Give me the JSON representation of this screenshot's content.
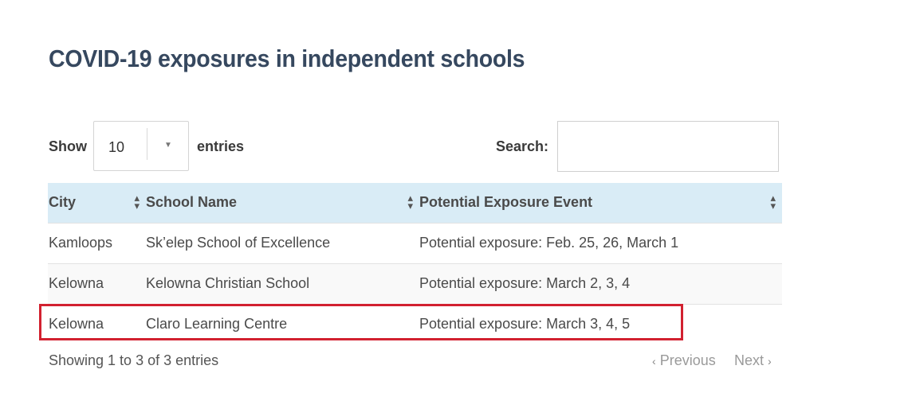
{
  "title": "COVID-19 exposures in independent schools",
  "controls": {
    "show_label": "Show",
    "entries_value": "10",
    "entries_label": "entries",
    "search_label": "Search:",
    "search_value": ""
  },
  "table": {
    "headers": [
      "City",
      "School Name",
      "Potential Exposure Event"
    ],
    "rows": [
      [
        "Kamloops",
        "Sk’elep School of Excellence",
        "Potential exposure: Feb. 25, 26, March 1"
      ],
      [
        "Kelowna",
        "Kelowna Christian School",
        "Potential exposure: March 2, 3, 4"
      ],
      [
        "Kelowna",
        "Claro Learning Centre",
        "Potential exposure: March 3, 4, 5"
      ]
    ]
  },
  "footer": {
    "info": "Showing 1 to 3 of 3 entries",
    "previous": "Previous",
    "next": "Next"
  },
  "colors": {
    "title": "#36485f",
    "header_bg": "#d9ecf6",
    "highlight_border": "#d22130"
  }
}
